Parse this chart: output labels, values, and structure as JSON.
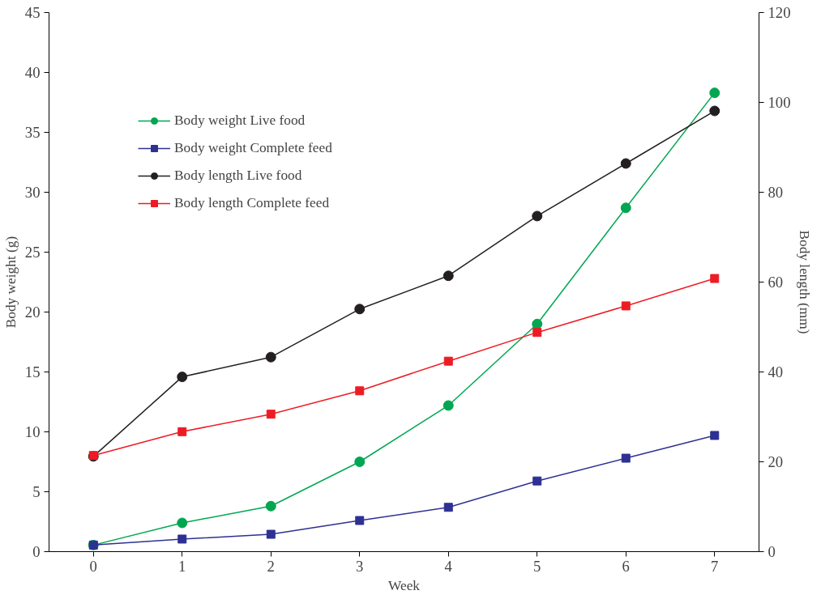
{
  "chart_data": {
    "type": "line",
    "xlabel": "Week",
    "ylabel": "Body weight (g)",
    "y2label": "Body length (mm)",
    "x": [
      0,
      1,
      2,
      3,
      4,
      5,
      6,
      7
    ],
    "xlim": [
      -0.5,
      7.5
    ],
    "xticks": [
      0,
      1,
      2,
      3,
      4,
      5,
      6,
      7
    ],
    "ylim": [
      0,
      45
    ],
    "yticks": [
      0,
      5,
      10,
      15,
      20,
      25,
      30,
      35,
      40,
      45
    ],
    "y2lim": [
      0,
      120
    ],
    "y2ticks": [
      0,
      20,
      40,
      60,
      80,
      100,
      120
    ],
    "grid": false,
    "legend": "top left",
    "line_style": "solid",
    "series": [
      {
        "name": "Body weight Live food",
        "color": "#00a651",
        "marker": "circle",
        "values": [
          0.55,
          2.4,
          3.8,
          7.5,
          12.2,
          19.0,
          28.7,
          38.3
        ]
      },
      {
        "name": "Body weight Complete feed",
        "color": "#2e3192",
        "marker": "square",
        "values": [
          0.55,
          1.05,
          1.45,
          2.6,
          3.7,
          5.9,
          7.8,
          9.7
        ]
      },
      {
        "name": "Body length Live food",
        "color": "#231f20",
        "marker": "circle",
        "axis": "y2",
        "values": [
          21.2,
          38.9,
          43.3,
          54.0,
          61.4,
          74.7,
          86.4,
          98.1
        ]
      },
      {
        "name": "Body length Complete feed",
        "color": "#ed1c24",
        "marker": "square",
        "axis": "y2",
        "values": [
          21.4,
          26.7,
          30.6,
          35.8,
          42.4,
          48.8,
          54.7,
          60.8
        ]
      }
    ]
  }
}
